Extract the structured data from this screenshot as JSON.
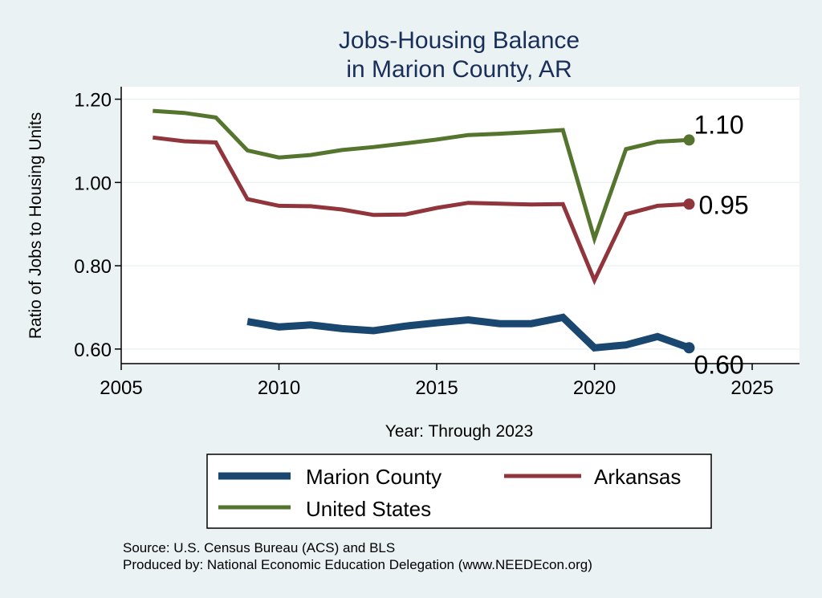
{
  "chart_data": {
    "type": "line",
    "title": [
      "Jobs-Housing Balance",
      "in Marion County, AR"
    ],
    "xlabel": "Year: Through 2023",
    "ylabel": "Ratio of Jobs to Housing Units",
    "xlim": [
      2005,
      2026.5
    ],
    "ylim": [
      0.565,
      1.23
    ],
    "x_ticks": [
      2005,
      2010,
      2015,
      2020,
      2025
    ],
    "y_ticks": [
      0.6,
      0.8,
      1.0,
      1.2
    ],
    "y_tick_labels": [
      "0.60",
      "0.80",
      "1.00",
      "1.20"
    ],
    "grid": true,
    "legend_position": "bottom",
    "series": [
      {
        "name": "Marion County",
        "color": "#1a476f",
        "stroke": "thick",
        "x": [
          2009,
          2010,
          2011,
          2012,
          2013,
          2014,
          2015,
          2016,
          2017,
          2018,
          2019,
          2020,
          2021,
          2022,
          2023
        ],
        "values": [
          0.666,
          0.653,
          0.658,
          0.649,
          0.644,
          0.655,
          0.663,
          0.67,
          0.661,
          0.661,
          0.676,
          0.603,
          0.61,
          0.63,
          0.603
        ],
        "end_label": "0.60"
      },
      {
        "name": "Arkansas",
        "color": "#90353b",
        "stroke": "medium",
        "x": [
          2006,
          2007,
          2008,
          2009,
          2010,
          2011,
          2012,
          2013,
          2014,
          2015,
          2016,
          2017,
          2018,
          2019,
          2020,
          2021,
          2022,
          2023
        ],
        "values": [
          1.108,
          1.099,
          1.096,
          0.96,
          0.944,
          0.943,
          0.935,
          0.922,
          0.923,
          0.939,
          0.951,
          0.949,
          0.947,
          0.948,
          0.765,
          0.924,
          0.944,
          0.948
        ],
        "end_label": "0.95"
      },
      {
        "name": "United States",
        "color": "#55752f",
        "stroke": "medium",
        "x": [
          2006,
          2007,
          2008,
          2009,
          2010,
          2011,
          2012,
          2013,
          2014,
          2015,
          2016,
          2017,
          2018,
          2019,
          2020,
          2021,
          2022,
          2023
        ],
        "values": [
          1.172,
          1.167,
          1.156,
          1.077,
          1.06,
          1.066,
          1.078,
          1.085,
          1.094,
          1.103,
          1.114,
          1.117,
          1.121,
          1.126,
          0.865,
          1.08,
          1.098,
          1.102
        ],
        "end_label": "1.10"
      }
    ]
  },
  "footer": {
    "source": "Source: U.S. Census Bureau (ACS) and BLS",
    "produced_by": "Produced by: National Economic Education Delegation (www.NEEDEcon.org)"
  }
}
